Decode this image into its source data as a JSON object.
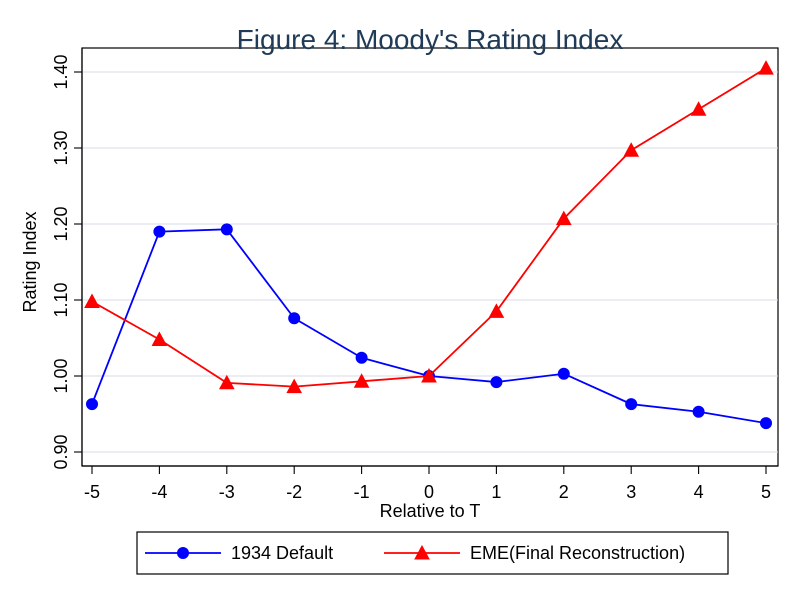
{
  "chart_data": {
    "type": "line",
    "title": "Figure 4: Moody's Rating Index",
    "xlabel": "Relative to T",
    "ylabel": "Rating Index",
    "x": [
      -5,
      -4,
      -3,
      -2,
      -1,
      0,
      1,
      2,
      3,
      4,
      5
    ],
    "x_tick_labels": [
      "-5",
      "-4",
      "-3",
      "-2",
      "-1",
      "0",
      "1",
      "2",
      "3",
      "4",
      "5"
    ],
    "y_ticks": [
      0.9,
      1.0,
      1.1,
      1.2,
      1.3,
      1.4
    ],
    "y_tick_labels": [
      "0.90",
      "1.00",
      "1.10",
      "1.20",
      "1.30",
      "1.40"
    ],
    "xlim": [
      -5,
      5
    ],
    "ylim": [
      0.9,
      1.4
    ],
    "grid": true,
    "legend_position": "bottom",
    "series": [
      {
        "name": "1934 Default",
        "color": "#0000ff",
        "marker": "circle",
        "values": [
          0.963,
          1.19,
          1.193,
          1.076,
          1.024,
          1.0,
          0.992,
          1.003,
          0.963,
          0.953,
          0.938
        ]
      },
      {
        "name": "EME(Final Reconstruction)",
        "color": "#ff0000",
        "marker": "triangle",
        "values": [
          1.098,
          1.048,
          0.991,
          0.986,
          0.993,
          1.0,
          1.085,
          1.207,
          1.297,
          1.351,
          1.405
        ]
      }
    ]
  }
}
